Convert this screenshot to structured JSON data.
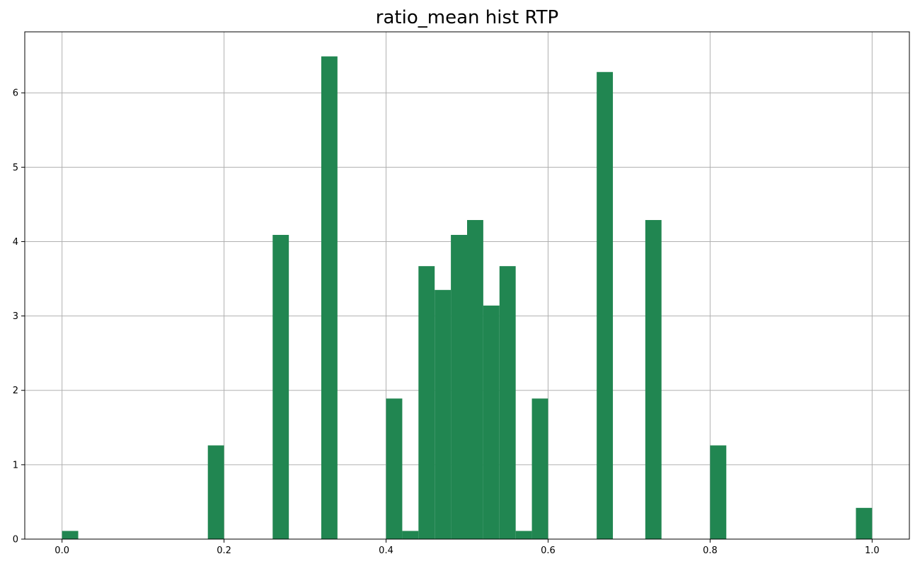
{
  "chart_data": {
    "type": "bar",
    "title": "ratio_mean hist RTP",
    "xlabel": "",
    "ylabel": "",
    "xlim": [
      -0.046,
      1.046
    ],
    "ylim": [
      0,
      6.82
    ],
    "grid": true,
    "bar_color": "#218651",
    "bin_width": 0.02,
    "xticks": [
      0.0,
      0.2,
      0.4,
      0.6,
      0.8,
      1.0
    ],
    "xtick_labels": [
      "0.0",
      "0.2",
      "0.4",
      "0.6",
      "0.8",
      "1.0"
    ],
    "yticks": [
      0,
      1,
      2,
      3,
      4,
      5,
      6
    ],
    "ytick_labels": [
      "0",
      "1",
      "2",
      "3",
      "4",
      "5",
      "6"
    ],
    "bins": [
      {
        "x": 0.0,
        "value": 0.11
      },
      {
        "x": 0.18,
        "value": 1.26
      },
      {
        "x": 0.26,
        "value": 4.09
      },
      {
        "x": 0.32,
        "value": 6.49
      },
      {
        "x": 0.4,
        "value": 1.89
      },
      {
        "x": 0.42,
        "value": 0.11
      },
      {
        "x": 0.44,
        "value": 3.67
      },
      {
        "x": 0.46,
        "value": 3.35
      },
      {
        "x": 0.48,
        "value": 4.09
      },
      {
        "x": 0.5,
        "value": 4.29
      },
      {
        "x": 0.52,
        "value": 3.14
      },
      {
        "x": 0.54,
        "value": 3.67
      },
      {
        "x": 0.56,
        "value": 0.11
      },
      {
        "x": 0.58,
        "value": 1.89
      },
      {
        "x": 0.66,
        "value": 6.28
      },
      {
        "x": 0.72,
        "value": 4.29
      },
      {
        "x": 0.8,
        "value": 1.26
      },
      {
        "x": 0.98,
        "value": 0.42
      }
    ]
  }
}
